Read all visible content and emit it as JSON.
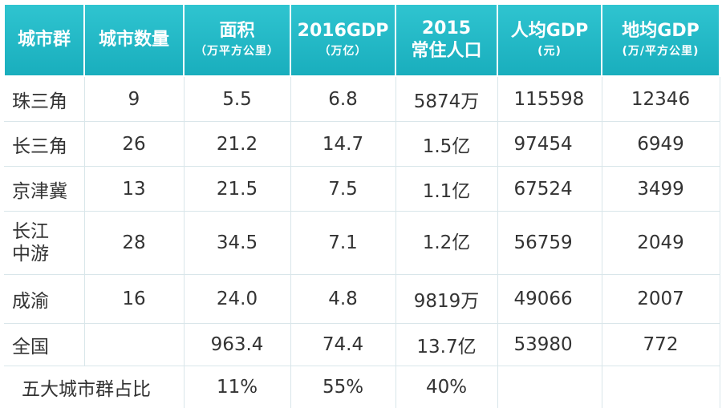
{
  "header": {
    "col0": {
      "main": "城市群"
    },
    "col1": {
      "main": "城市数量"
    },
    "col2": {
      "main": "面积",
      "sub": "（万平方公里）"
    },
    "col3": {
      "main": "2016GDP",
      "sub": "（万亿）"
    },
    "col4": {
      "main": "2015",
      "main2": "常住人口"
    },
    "col5": {
      "main": "人均GDP",
      "sub": "(元)"
    },
    "col6": {
      "main": "地均GDP",
      "sub": "(万/平方公里)"
    }
  },
  "rows": [
    {
      "name": "珠三角",
      "count": "9",
      "area": "5.5",
      "gdp": "6.8",
      "pop": "5874万",
      "per_capita": "115598",
      "per_area": "12346"
    },
    {
      "name": "长三角",
      "count": "26",
      "area": "21.2",
      "gdp": "14.7",
      "pop": "1.5亿",
      "per_capita": "97454",
      "per_area": "6949"
    },
    {
      "name": "京津冀",
      "count": "13",
      "area": "21.5",
      "gdp": "7.5",
      "pop": "1.1亿",
      "per_capita": "67524",
      "per_area": "3499"
    },
    {
      "name_line1": "长江",
      "name_line2": "中游",
      "count": "28",
      "area": "34.5",
      "gdp": "7.1",
      "pop": "1.2亿",
      "per_capita": "56759",
      "per_area": "2049"
    },
    {
      "name": "成渝",
      "count": "16",
      "area": "24.0",
      "gdp": "4.8",
      "pop": "9819万",
      "per_capita": "49066",
      "per_area": "2007"
    },
    {
      "name": "全国",
      "count": "",
      "area": "963.4",
      "gdp": "74.4",
      "pop": "13.7亿",
      "per_capita": "53980",
      "per_area": "772"
    }
  ],
  "share_row": {
    "label": "五大城市群占比",
    "area": "11%",
    "gdp": "55%",
    "pop": "40%"
  }
}
